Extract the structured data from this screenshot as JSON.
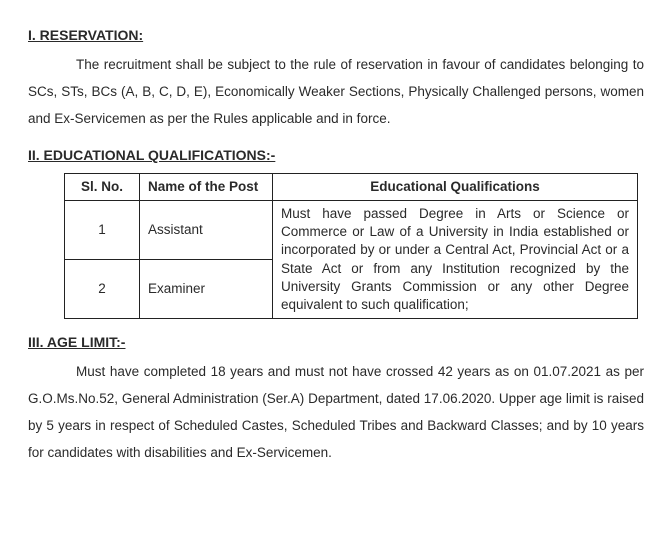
{
  "section1": {
    "heading": "I. RESERVATION:",
    "text": "The recruitment shall be subject to the rule of reservation in favour of candidates belonging to SCs, STs, BCs (A, B, C, D, E), Economically Weaker Sections, Physically Challenged persons, women and Ex-Servicemen as per the Rules applicable and in force."
  },
  "section2": {
    "heading": "II. EDUCATIONAL QUALIFICATIONS:-",
    "table": {
      "headers": {
        "c1": "Sl. No.",
        "c2": "Name of the Post",
        "c3": "Educational Qualifications"
      },
      "rows": [
        {
          "sl": "1",
          "name": "Assistant"
        },
        {
          "sl": "2",
          "name": "Examiner"
        }
      ],
      "qualification": "Must have passed Degree in Arts or Science or Commerce or Law of a University in India established or incorporated by or under a Central Act,  Provincial Act or a State Act or from any Institution recognized by the University Grants Commission or any other Degree equivalent to such qualification;"
    }
  },
  "section3": {
    "heading": "III. AGE LIMIT:-",
    "text": "Must have completed 18 years and must not have crossed 42 years as on 01.07.2021 as per G.O.Ms.No.52, General Administration (Ser.A) Department, dated 17.06.2020. Upper age limit is raised by 5 years in respect of Scheduled Castes, Scheduled Tribes and Backward Classes; and by 10 years for candidates with disabilities and Ex-Servicemen."
  }
}
